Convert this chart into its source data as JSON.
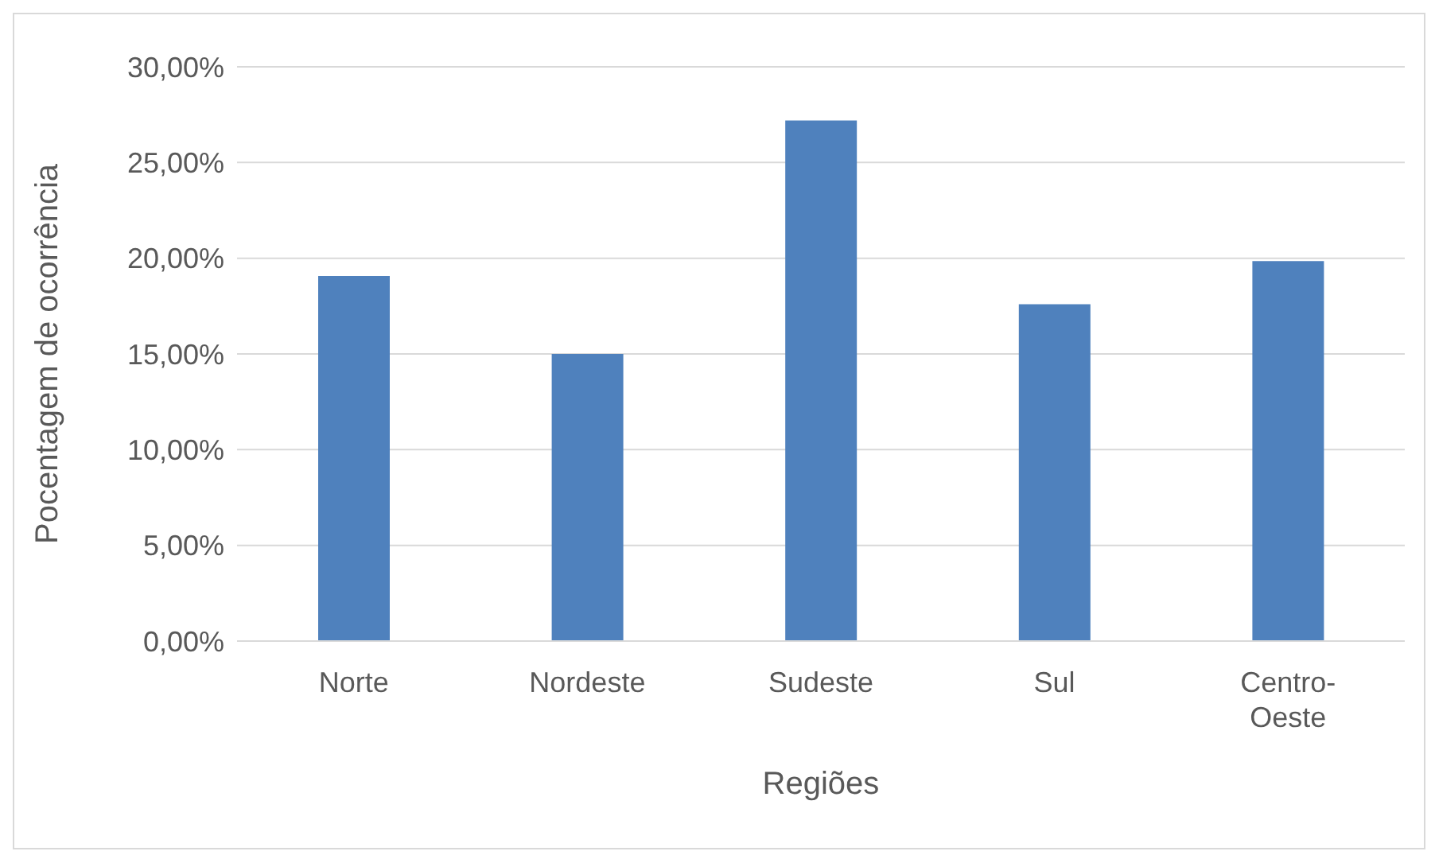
{
  "chart_data": {
    "type": "bar",
    "xlabel": "Regiões",
    "ylabel": "Pocentagem de ocorrência",
    "categories": [
      "Norte",
      "Nordeste",
      "Sudeste",
      "Sul",
      "Centro-Oeste"
    ],
    "values": [
      19.07,
      15.0,
      27.2,
      17.6,
      19.85
    ],
    "color": "#4f81bd",
    "ylim": [
      0,
      30
    ],
    "yticks": [
      {
        "value": 0,
        "label": "0,00%"
      },
      {
        "value": 5,
        "label": "5,00%"
      },
      {
        "value": 10,
        "label": "10,00%"
      },
      {
        "value": 15,
        "label": "15,00%"
      },
      {
        "value": 20,
        "label": "20,00%"
      },
      {
        "value": 25,
        "label": "25,00%"
      },
      {
        "value": 30,
        "label": "30,00%"
      }
    ],
    "grid": "y"
  }
}
